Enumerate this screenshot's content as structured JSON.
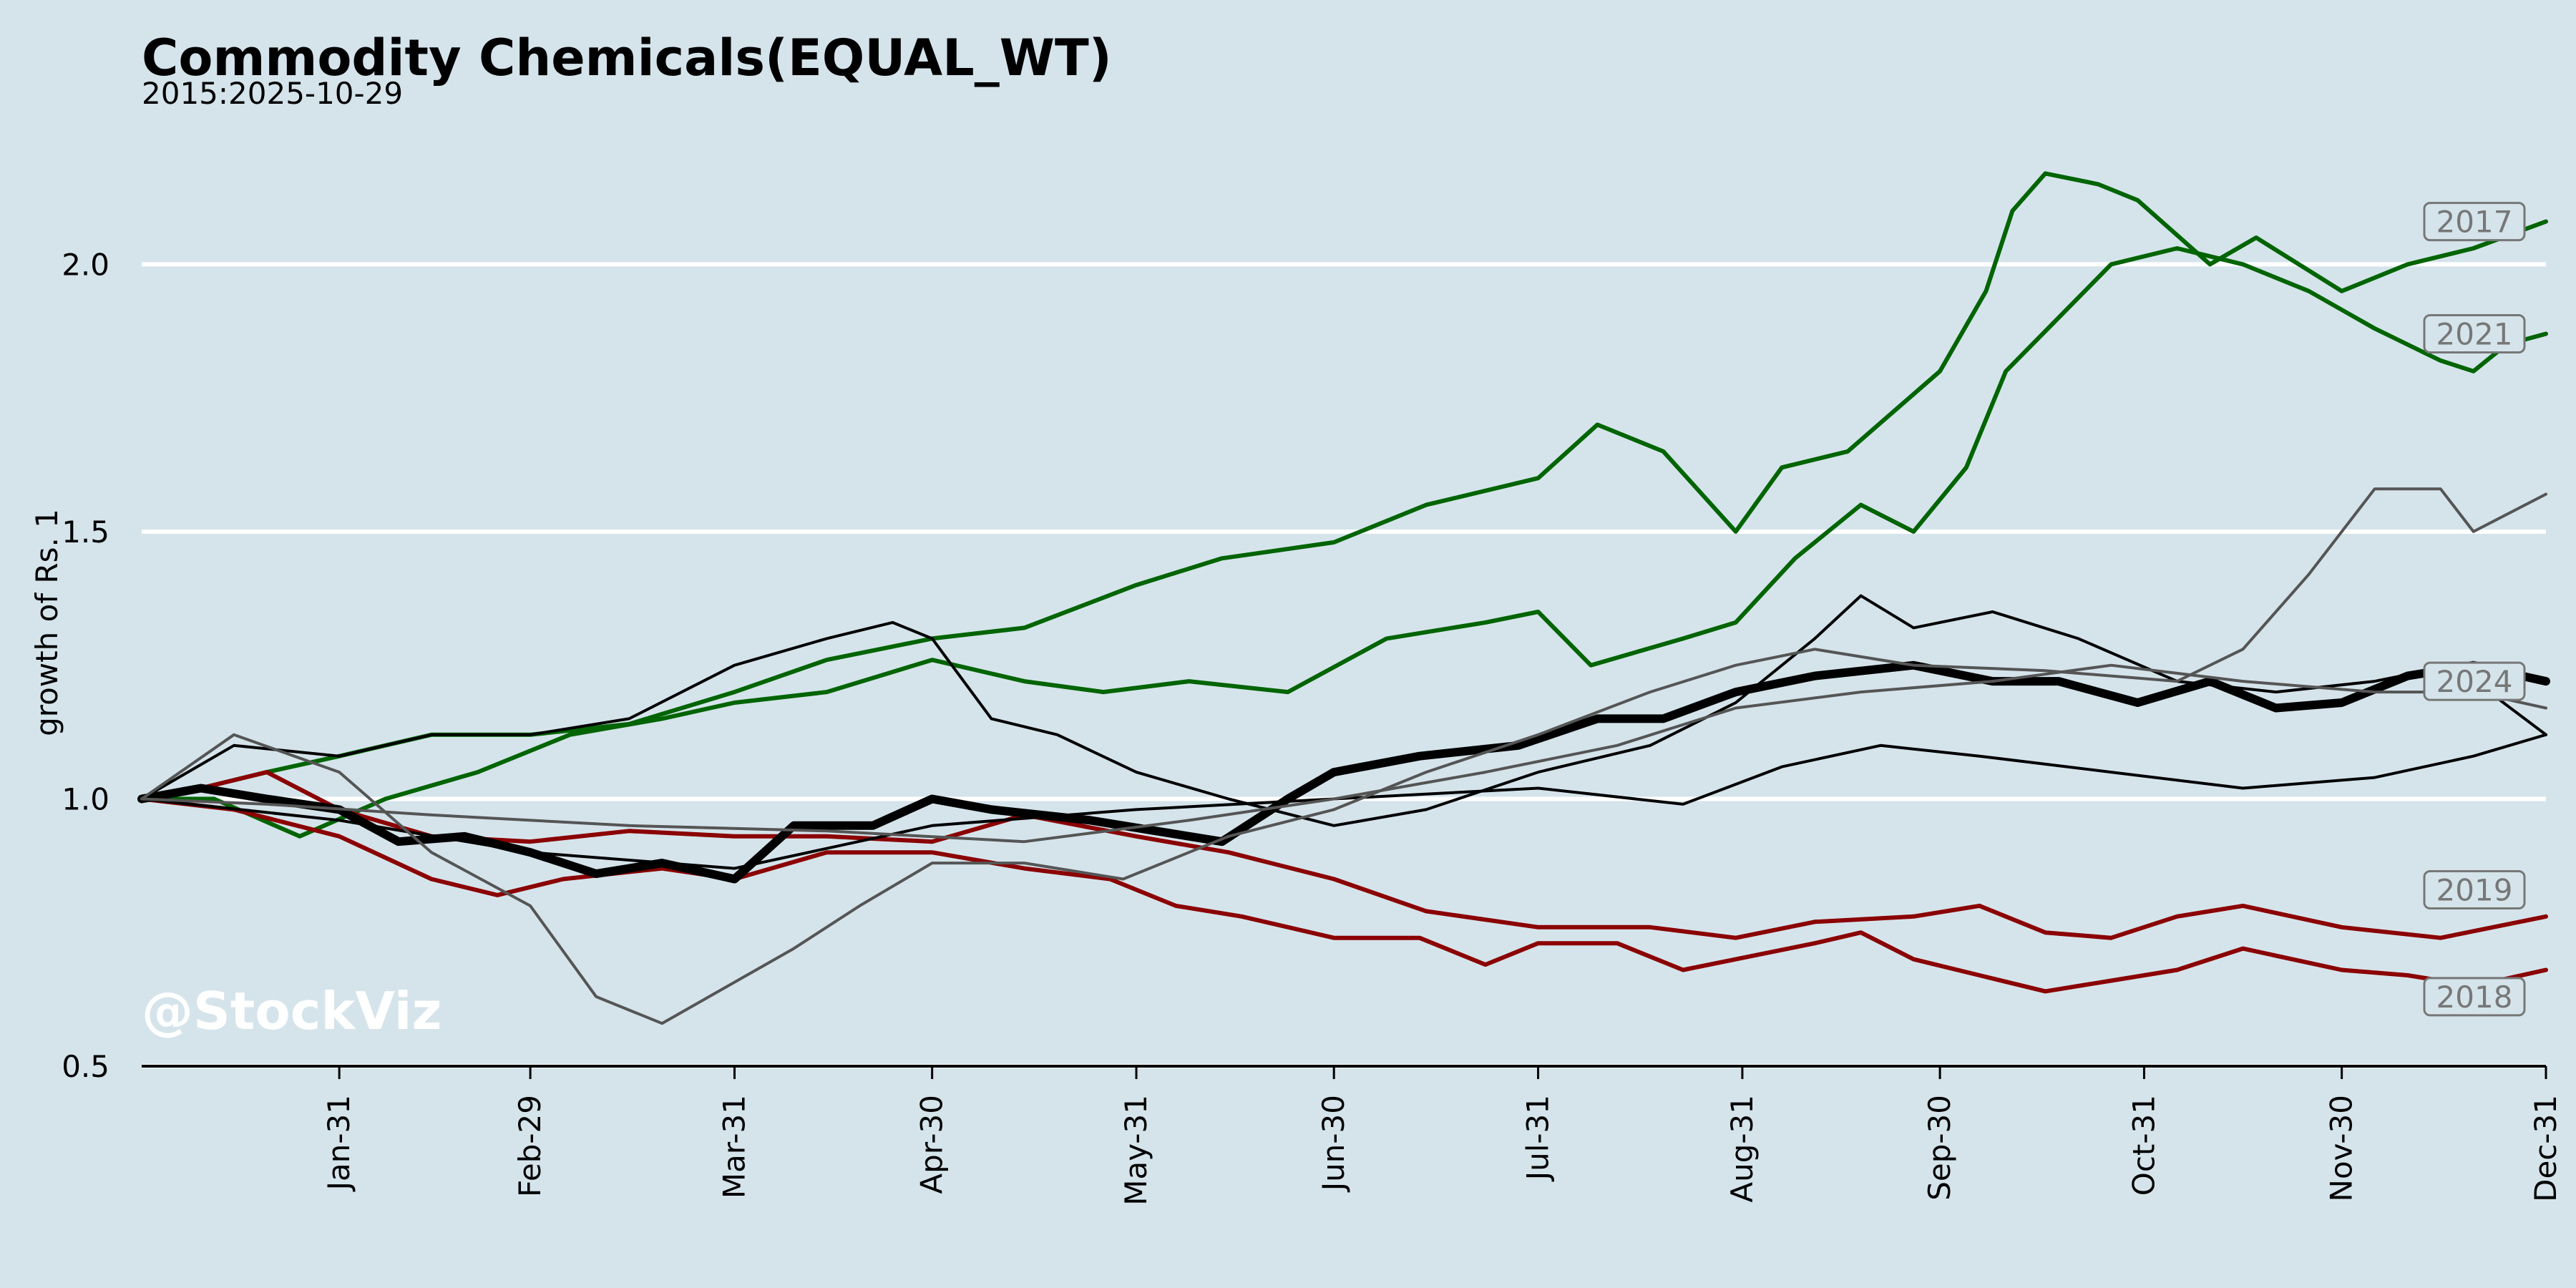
{
  "chart_data": {
    "type": "line",
    "title": "Commodity Chemicals(EQUAL_WT)",
    "subtitle": "2015:2025-10-29",
    "ylabel": "growth of Rs. 1",
    "ylim": [
      0.5,
      2.2
    ],
    "yticks": [
      "0.5",
      "1.0",
      "1.5",
      "2.0"
    ],
    "x_ticks": [
      "Jan-31",
      "Feb-29",
      "Mar-31",
      "Apr-30",
      "May-31",
      "Jun-30",
      "Jul-31",
      "Aug-31",
      "Sep-30",
      "Oct-31",
      "Nov-30",
      "Dec-31"
    ],
    "x_range_days": [
      1,
      366
    ],
    "grid": "horizontal",
    "watermark": "@StockViz",
    "colors": {
      "background": "#d5e4eb",
      "green": "#006400",
      "red": "#8b0000",
      "black": "#000000",
      "grey": "#555555"
    },
    "series": [
      {
        "name": "2017",
        "color": "#006400",
        "width": 3,
        "points": [
          [
            1,
            1.0
          ],
          [
            10,
            1.02
          ],
          [
            20,
            1.05
          ],
          [
            31,
            1.08
          ],
          [
            45,
            1.12
          ],
          [
            60,
            1.12
          ],
          [
            75,
            1.14
          ],
          [
            91,
            1.2
          ],
          [
            105,
            1.26
          ],
          [
            121,
            1.3
          ],
          [
            135,
            1.32
          ],
          [
            152,
            1.4
          ],
          [
            165,
            1.45
          ],
          [
            182,
            1.48
          ],
          [
            196,
            1.55
          ],
          [
            213,
            1.6
          ],
          [
            222,
            1.7
          ],
          [
            232,
            1.65
          ],
          [
            243,
            1.5
          ],
          [
            250,
            1.62
          ],
          [
            260,
            1.65
          ],
          [
            274,
            1.8
          ],
          [
            281,
            1.95
          ],
          [
            285,
            2.1
          ],
          [
            290,
            2.17
          ],
          [
            298,
            2.15
          ],
          [
            304,
            2.12
          ],
          [
            315,
            2.0
          ],
          [
            322,
            2.05
          ],
          [
            335,
            1.95
          ],
          [
            345,
            2.0
          ],
          [
            355,
            2.03
          ],
          [
            366,
            2.08
          ]
        ]
      },
      {
        "name": "2021",
        "color": "#006400",
        "width": 3,
        "points": [
          [
            1,
            1.0
          ],
          [
            12,
            1.0
          ],
          [
            25,
            0.93
          ],
          [
            38,
            1.0
          ],
          [
            52,
            1.05
          ],
          [
            66,
            1.12
          ],
          [
            80,
            1.15
          ],
          [
            91,
            1.18
          ],
          [
            105,
            1.2
          ],
          [
            121,
            1.26
          ],
          [
            135,
            1.22
          ],
          [
            147,
            1.2
          ],
          [
            160,
            1.22
          ],
          [
            175,
            1.2
          ],
          [
            190,
            1.3
          ],
          [
            205,
            1.33
          ],
          [
            213,
            1.35
          ],
          [
            221,
            1.25
          ],
          [
            235,
            1.3
          ],
          [
            243,
            1.33
          ],
          [
            252,
            1.45
          ],
          [
            262,
            1.55
          ],
          [
            270,
            1.5
          ],
          [
            278,
            1.62
          ],
          [
            284,
            1.8
          ],
          [
            292,
            1.9
          ],
          [
            300,
            2.0
          ],
          [
            310,
            2.03
          ],
          [
            320,
            2.0
          ],
          [
            330,
            1.95
          ],
          [
            340,
            1.88
          ],
          [
            350,
            1.82
          ],
          [
            355,
            1.8
          ],
          [
            360,
            1.85
          ],
          [
            366,
            1.87
          ]
        ]
      },
      {
        "name": "2019",
        "color": "#8b0000",
        "width": 3,
        "points": [
          [
            1,
            1.0
          ],
          [
            10,
            1.02
          ],
          [
            20,
            1.05
          ],
          [
            31,
            0.98
          ],
          [
            45,
            0.93
          ],
          [
            60,
            0.92
          ],
          [
            75,
            0.94
          ],
          [
            91,
            0.93
          ],
          [
            105,
            0.93
          ],
          [
            121,
            0.92
          ],
          [
            135,
            0.97
          ],
          [
            152,
            0.93
          ],
          [
            166,
            0.9
          ],
          [
            182,
            0.85
          ],
          [
            196,
            0.79
          ],
          [
            213,
            0.76
          ],
          [
            230,
            0.76
          ],
          [
            243,
            0.74
          ],
          [
            255,
            0.77
          ],
          [
            270,
            0.78
          ],
          [
            280,
            0.8
          ],
          [
            290,
            0.75
          ],
          [
            300,
            0.74
          ],
          [
            310,
            0.78
          ],
          [
            320,
            0.8
          ],
          [
            335,
            0.76
          ],
          [
            350,
            0.74
          ],
          [
            366,
            0.78
          ]
        ]
      },
      {
        "name": "2018",
        "color": "#8b0000",
        "width": 3,
        "points": [
          [
            1,
            1.0
          ],
          [
            15,
            0.98
          ],
          [
            31,
            0.93
          ],
          [
            45,
            0.85
          ],
          [
            55,
            0.82
          ],
          [
            65,
            0.85
          ],
          [
            80,
            0.87
          ],
          [
            91,
            0.85
          ],
          [
            105,
            0.9
          ],
          [
            121,
            0.9
          ],
          [
            135,
            0.87
          ],
          [
            148,
            0.85
          ],
          [
            158,
            0.8
          ],
          [
            168,
            0.78
          ],
          [
            182,
            0.74
          ],
          [
            195,
            0.74
          ],
          [
            205,
            0.69
          ],
          [
            213,
            0.73
          ],
          [
            225,
            0.73
          ],
          [
            235,
            0.68
          ],
          [
            243,
            0.7
          ],
          [
            255,
            0.73
          ],
          [
            262,
            0.75
          ],
          [
            270,
            0.7
          ],
          [
            280,
            0.67
          ],
          [
            290,
            0.64
          ],
          [
            300,
            0.66
          ],
          [
            310,
            0.68
          ],
          [
            320,
            0.72
          ],
          [
            335,
            0.68
          ],
          [
            345,
            0.67
          ],
          [
            355,
            0.65
          ],
          [
            366,
            0.68
          ]
        ]
      },
      {
        "name": "2024",
        "color": "#000000",
        "width": 6,
        "points": [
          [
            1,
            1.0
          ],
          [
            10,
            1.02
          ],
          [
            20,
            1.0
          ],
          [
            31,
            0.98
          ],
          [
            40,
            0.92
          ],
          [
            50,
            0.93
          ],
          [
            60,
            0.9
          ],
          [
            70,
            0.86
          ],
          [
            80,
            0.88
          ],
          [
            91,
            0.85
          ],
          [
            100,
            0.95
          ],
          [
            112,
            0.95
          ],
          [
            121,
            1.0
          ],
          [
            130,
            0.98
          ],
          [
            145,
            0.96
          ],
          [
            155,
            0.94
          ],
          [
            165,
            0.92
          ],
          [
            175,
            1.0
          ],
          [
            182,
            1.05
          ],
          [
            195,
            1.08
          ],
          [
            210,
            1.1
          ],
          [
            222,
            1.15
          ],
          [
            232,
            1.15
          ],
          [
            243,
            1.2
          ],
          [
            255,
            1.23
          ],
          [
            270,
            1.25
          ],
          [
            282,
            1.22
          ],
          [
            292,
            1.22
          ],
          [
            304,
            1.18
          ],
          [
            315,
            1.22
          ],
          [
            325,
            1.17
          ],
          [
            335,
            1.18
          ],
          [
            345,
            1.23
          ],
          [
            355,
            1.25
          ],
          [
            366,
            1.22
          ]
        ]
      },
      {
        "name": "",
        "color": "#000000",
        "width": 2,
        "points": [
          [
            1,
            1.0
          ],
          [
            15,
            1.1
          ],
          [
            31,
            1.08
          ],
          [
            45,
            1.12
          ],
          [
            60,
            1.12
          ],
          [
            75,
            1.15
          ],
          [
            91,
            1.25
          ],
          [
            105,
            1.3
          ],
          [
            115,
            1.33
          ],
          [
            121,
            1.3
          ],
          [
            130,
            1.15
          ],
          [
            140,
            1.12
          ],
          [
            152,
            1.05
          ],
          [
            166,
            1.0
          ],
          [
            182,
            0.95
          ],
          [
            196,
            0.98
          ],
          [
            213,
            1.05
          ],
          [
            230,
            1.1
          ],
          [
            243,
            1.18
          ],
          [
            255,
            1.3
          ],
          [
            262,
            1.38
          ],
          [
            270,
            1.32
          ],
          [
            282,
            1.35
          ],
          [
            295,
            1.3
          ],
          [
            310,
            1.22
          ],
          [
            325,
            1.2
          ],
          [
            340,
            1.22
          ],
          [
            352,
            1.25
          ],
          [
            366,
            1.12
          ]
        ]
      },
      {
        "name": "",
        "color": "#000000",
        "width": 2,
        "points": [
          [
            1,
            1.0
          ],
          [
            31,
            0.96
          ],
          [
            60,
            0.9
          ],
          [
            91,
            0.87
          ],
          [
            121,
            0.95
          ],
          [
            152,
            0.98
          ],
          [
            182,
            1.0
          ],
          [
            213,
            1.02
          ],
          [
            235,
            0.99
          ],
          [
            250,
            1.06
          ],
          [
            265,
            1.1
          ],
          [
            280,
            1.08
          ],
          [
            300,
            1.05
          ],
          [
            320,
            1.02
          ],
          [
            340,
            1.04
          ],
          [
            355,
            1.08
          ],
          [
            366,
            1.12
          ]
        ]
      },
      {
        "name": "",
        "color": "#555555",
        "width": 2,
        "points": [
          [
            1,
            1.0
          ],
          [
            15,
            1.12
          ],
          [
            31,
            1.05
          ],
          [
            45,
            0.9
          ],
          [
            60,
            0.8
          ],
          [
            70,
            0.63
          ],
          [
            80,
            0.58
          ],
          [
            90,
            0.65
          ],
          [
            100,
            0.72
          ],
          [
            110,
            0.8
          ],
          [
            121,
            0.88
          ],
          [
            135,
            0.88
          ],
          [
            150,
            0.85
          ],
          [
            166,
            0.93
          ],
          [
            182,
            0.98
          ],
          [
            196,
            1.05
          ],
          [
            213,
            1.12
          ],
          [
            230,
            1.2
          ],
          [
            243,
            1.25
          ],
          [
            255,
            1.28
          ],
          [
            270,
            1.25
          ],
          [
            290,
            1.24
          ],
          [
            310,
            1.22
          ],
          [
            320,
            1.28
          ],
          [
            330,
            1.42
          ],
          [
            340,
            1.58
          ],
          [
            350,
            1.58
          ],
          [
            355,
            1.5
          ],
          [
            366,
            1.57
          ]
        ]
      },
      {
        "name": "",
        "color": "#555555",
        "width": 2,
        "points": [
          [
            1,
            1.0
          ],
          [
            20,
            0.99
          ],
          [
            45,
            0.97
          ],
          [
            75,
            0.95
          ],
          [
            105,
            0.94
          ],
          [
            135,
            0.92
          ],
          [
            160,
            0.96
          ],
          [
            182,
            1.0
          ],
          [
            205,
            1.05
          ],
          [
            225,
            1.1
          ],
          [
            243,
            1.17
          ],
          [
            262,
            1.2
          ],
          [
            282,
            1.22
          ],
          [
            300,
            1.25
          ],
          [
            320,
            1.22
          ],
          [
            340,
            1.2
          ],
          [
            355,
            1.2
          ],
          [
            366,
            1.17
          ]
        ]
      }
    ],
    "series_labels": [
      {
        "text": "2017",
        "y": 2.08
      },
      {
        "text": "2021",
        "y": 1.87
      },
      {
        "text": "2024",
        "y": 1.22
      },
      {
        "text": "2019",
        "y": 0.83
      },
      {
        "text": "2018",
        "y": 0.63
      }
    ]
  }
}
